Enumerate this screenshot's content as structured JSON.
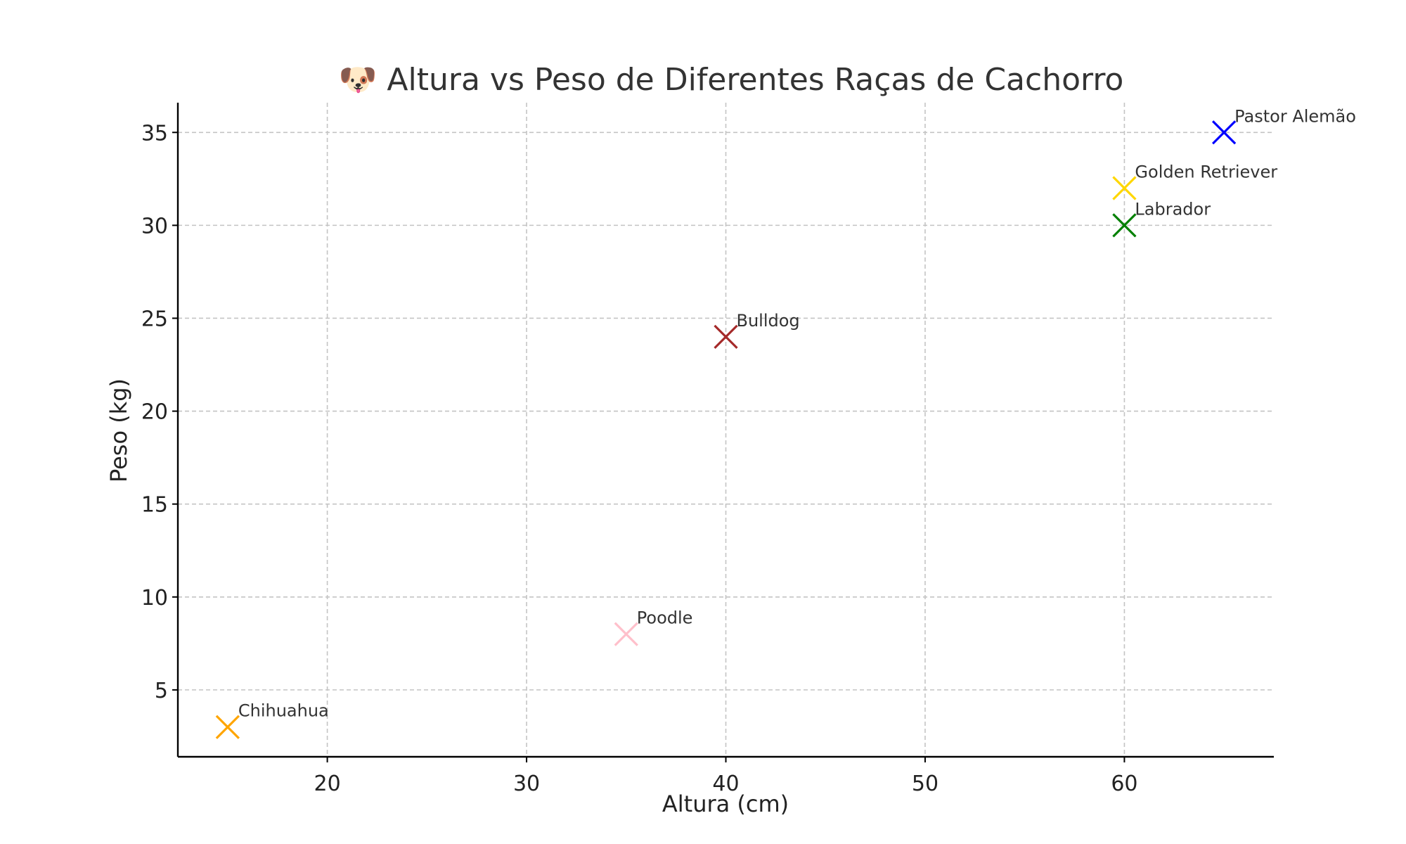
{
  "chart_data": {
    "type": "scatter",
    "title": "🐶 Altura vs Peso de Diferentes Raças de Cachorro",
    "xlabel": "Altura (cm)",
    "ylabel": "Peso (kg)",
    "xlim": [
      12.5,
      67.5
    ],
    "ylim": [
      1.4,
      36.6
    ],
    "xticks": [
      20,
      30,
      40,
      50,
      60
    ],
    "yticks": [
      5,
      10,
      15,
      20,
      25,
      30,
      35
    ],
    "grid": true,
    "marker": "x",
    "points": [
      {
        "label": "Chihuahua",
        "x": 15,
        "y": 3,
        "color": "#FFA500"
      },
      {
        "label": "Poodle",
        "x": 35,
        "y": 8,
        "color": "#FFC0CB"
      },
      {
        "label": "Bulldog",
        "x": 40,
        "y": 24,
        "color": "#A52A2A"
      },
      {
        "label": "Labrador",
        "x": 60,
        "y": 30,
        "color": "#008000"
      },
      {
        "label": "Golden Retriever",
        "x": 60,
        "y": 32,
        "color": "#FFD700"
      },
      {
        "label": "Pastor Alemão",
        "x": 65,
        "y": 35,
        "color": "#0000FF"
      }
    ]
  }
}
